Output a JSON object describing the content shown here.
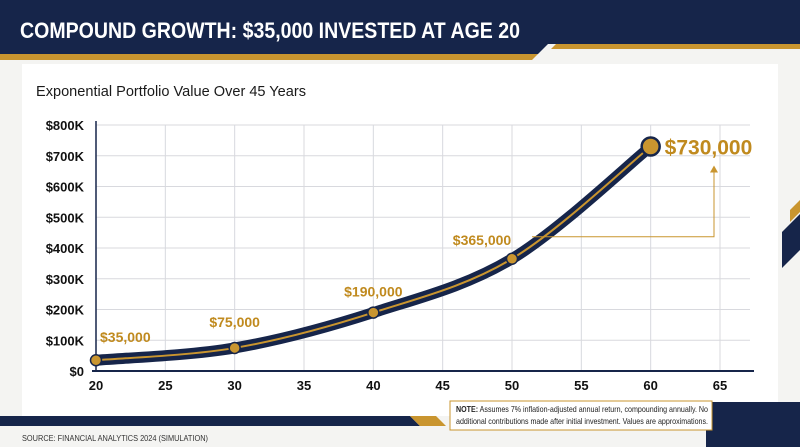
{
  "colors": {
    "navy": "#16254a",
    "gold": "#c9952f",
    "gold_label": "#c08a1e",
    "grid": "#d8d9de",
    "background": "#f4f4f2",
    "panel": "#ffffff"
  },
  "header": {
    "title": "COMPOUND GROWTH: $35,000 INVESTED AT AGE 20"
  },
  "note": {
    "label": "NOTE:",
    "line1": " Assumes 7% inflation-adjusted annual return, compounding annually. No",
    "line2": "additional contributions made after initial investment. Values are approximations."
  },
  "source": "SOURCE: FINANCIAL ANALYTICS 2024 (SIMULATION)",
  "chart_data": {
    "type": "line",
    "title": "Exponential Portfolio Value Over 45 Years",
    "xlabel": "",
    "ylabel": "",
    "x": [
      20,
      30,
      40,
      50,
      60
    ],
    "series": [
      {
        "values": [
          35000,
          75000,
          190000,
          365000,
          730000
        ]
      }
    ],
    "data_labels": [
      "$35,000",
      "$75,000",
      "$190,000",
      "$365,000",
      "$730,000"
    ],
    "xlim": [
      20,
      65
    ],
    "ylim": [
      0,
      800000
    ],
    "x_ticks": [
      20,
      25,
      30,
      35,
      40,
      45,
      50,
      55,
      60,
      65
    ],
    "y_ticks": [
      0,
      100000,
      200000,
      300000,
      400000,
      500000,
      600000,
      700000,
      800000
    ],
    "y_tick_labels": [
      "$0",
      "$100K",
      "$200K",
      "$300K",
      "$400K",
      "$500K",
      "$600K",
      "$700K",
      "$800K"
    ],
    "grid": true
  }
}
